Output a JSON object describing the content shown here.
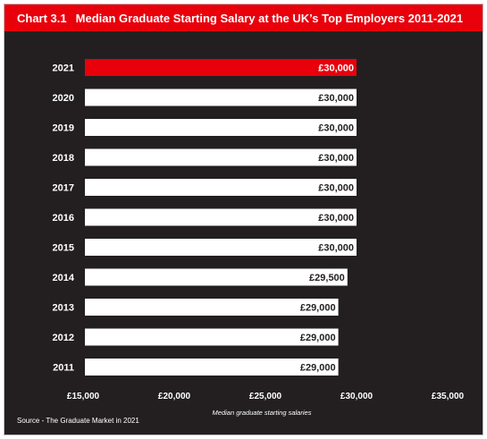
{
  "header": {
    "chart_number": "Chart 3.1",
    "title": "Median Graduate Starting Salary at the UK’s Top Employers 2011-2021"
  },
  "source": "Source - The Graduate Market in 2021",
  "colors": {
    "background": "#231f20",
    "bar": "#ffffff",
    "highlight_bar": "#e8000b",
    "title_bar": "#e8000b",
    "text": "#ffffff",
    "bar_label": "#231f20"
  },
  "chart_data": {
    "type": "bar",
    "orientation": "horizontal",
    "title": "Median Graduate Starting Salary at the UK’s Top Employers 2011-2021",
    "xlabel": "Median graduate starting salaries",
    "ylabel": "",
    "categories": [
      "2021",
      "2020",
      "2019",
      "2018",
      "2017",
      "2016",
      "2015",
      "2014",
      "2013",
      "2012",
      "2011"
    ],
    "values": [
      30000,
      30000,
      30000,
      30000,
      30000,
      30000,
      30000,
      29500,
      29000,
      29000,
      29000
    ],
    "value_labels": [
      "£30,000",
      "£30,000",
      "£30,000",
      "£30,000",
      "£30,000",
      "£30,000",
      "£30,000",
      "£29,500",
      "£29,000",
      "£29,000",
      "£29,000"
    ],
    "highlight_category": "2021",
    "xlim": [
      15000,
      35000
    ],
    "xticks": [
      15000,
      20000,
      25000,
      30000,
      35000
    ],
    "xtick_labels": [
      "£15,000",
      "£20,000",
      "£25,000",
      "£30,000",
      "£35,000"
    ],
    "grid": false,
    "legend": "none"
  }
}
